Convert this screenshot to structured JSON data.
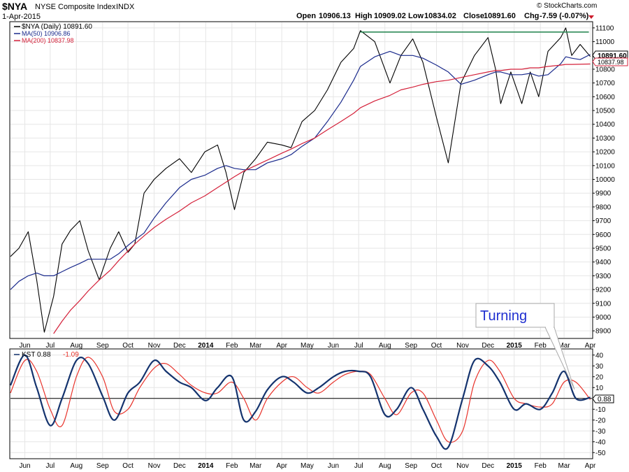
{
  "header": {
    "symbol": "$NYA",
    "name": "NYSE Composite Index",
    "exchange": "INDX",
    "date": "1-Apr-2015",
    "open_label": "Open",
    "open": "10906.13",
    "high_label": "High",
    "high": "10909.02",
    "low_label": "Low",
    "low": "10834.02",
    "close_label": "Close",
    "close": "10891.60",
    "chg_label": "Chg",
    "chg": "-7.59 (-0.07%)",
    "watermark": "© StockCharts.com"
  },
  "colors": {
    "price": "#000000",
    "ma50": "#1a2a8c",
    "ma200": "#d4213a",
    "resistance": "#2e8b57",
    "kst": "#14336e",
    "kst_signal": "#e8332b",
    "annotation": "#1f2fd0"
  },
  "chart_data": [
    {
      "type": "line",
      "panel": "price",
      "y_ticks": [
        "8900",
        "9000",
        "9100",
        "9200",
        "9300",
        "9400",
        "9500",
        "9600",
        "9700",
        "9800",
        "9900",
        "10000",
        "10100",
        "10200",
        "10300",
        "10400",
        "10500",
        "10600",
        "10700",
        "10800",
        "11000",
        "11100"
      ],
      "ylim": [
        8850,
        11140
      ],
      "x_labels": [
        "Jun",
        "Jul",
        "Aug",
        "Sep",
        "Oct",
        "Nov",
        "Dec",
        "2014",
        "Feb",
        "Mar",
        "Apr",
        "May",
        "Jun",
        "Jul",
        "Aug",
        "Sep",
        "Oct",
        "Nov",
        "Dec",
        "2015",
        "Feb",
        "Mar",
        "Apr"
      ],
      "bold_x_labels": [
        "2014",
        "2015"
      ],
      "legend": [
        {
          "label": "$NYA (Daily) 10891.60"
        },
        {
          "label": "MA(50) 10906.86"
        },
        {
          "label": "MA(200) 10837.98"
        }
      ],
      "last_value_tags": [
        "10891.60",
        "10837.98"
      ],
      "x": [
        "2013-05-15",
        "2013-05-25",
        "2013-06-05",
        "2013-06-15",
        "2013-06-24",
        "2013-07-05",
        "2013-07-15",
        "2013-07-25",
        "2013-08-05",
        "2013-08-15",
        "2013-08-28",
        "2013-09-10",
        "2013-09-20",
        "2013-10-01",
        "2013-10-09",
        "2013-10-20",
        "2013-11-01",
        "2013-11-15",
        "2013-12-01",
        "2013-12-15",
        "2013-12-31",
        "2014-01-15",
        "2014-01-25",
        "2014-02-04",
        "2014-02-15",
        "2014-03-01",
        "2014-03-15",
        "2014-04-01",
        "2014-04-12",
        "2014-04-25",
        "2014-05-10",
        "2014-05-25",
        "2014-06-10",
        "2014-06-25",
        "2014-07-03",
        "2014-07-20",
        "2014-08-07",
        "2014-08-20",
        "2014-09-03",
        "2014-09-15",
        "2014-10-01",
        "2014-10-15",
        "2014-10-30",
        "2014-11-15",
        "2014-12-01",
        "2014-12-10",
        "2014-12-16",
        "2014-12-28",
        "2015-01-10",
        "2015-01-20",
        "2015-01-30",
        "2015-02-10",
        "2015-02-25",
        "2015-03-03",
        "2015-03-10",
        "2015-03-20",
        "2015-04-01"
      ],
      "series": [
        {
          "name": "$NYA (Daily)",
          "values": [
            9440,
            9500,
            9620,
            9270,
            8890,
            9150,
            9530,
            9630,
            9700,
            9480,
            9270,
            9500,
            9620,
            9470,
            9530,
            9900,
            10000,
            10080,
            10150,
            10050,
            10200,
            10250,
            10050,
            9780,
            10050,
            10150,
            10270,
            10250,
            10230,
            10420,
            10500,
            10650,
            10850,
            10950,
            11080,
            11000,
            10700,
            10900,
            11020,
            10850,
            10450,
            10120,
            10700,
            10900,
            11030,
            10800,
            10550,
            10780,
            10550,
            10780,
            10600,
            10930,
            11030,
            11100,
            10900,
            10980,
            10892
          ]
        },
        {
          "name": "MA(50)",
          "values": [
            9200,
            9260,
            9300,
            9320,
            9300,
            9300,
            9330,
            9360,
            9390,
            9420,
            9420,
            9420,
            9460,
            9520,
            9560,
            9610,
            9720,
            9830,
            9940,
            10000,
            10030,
            10080,
            10100,
            10080,
            10070,
            10070,
            10120,
            10150,
            10180,
            10240,
            10300,
            10420,
            10560,
            10720,
            10820,
            10890,
            10930,
            10900,
            10900,
            10880,
            10830,
            10780,
            10690,
            10720,
            10760,
            10780,
            10780,
            10760,
            10760,
            10770,
            10750,
            10760,
            10840,
            10890,
            10880,
            10870,
            10907
          ]
        },
        {
          "name": "MA(200)",
          "values": [
            null,
            null,
            null,
            null,
            null,
            8880,
            8970,
            9050,
            9120,
            9190,
            9270,
            9340,
            9410,
            9480,
            9530,
            9590,
            9650,
            9710,
            9770,
            9830,
            9880,
            9940,
            9980,
            10020,
            10060,
            10100,
            10140,
            10190,
            10220,
            10260,
            10300,
            10360,
            10420,
            10480,
            10520,
            10570,
            10610,
            10650,
            10670,
            10690,
            10710,
            10720,
            10740,
            10760,
            10780,
            10790,
            10790,
            10800,
            10800,
            10810,
            10810,
            10820,
            10830,
            10835,
            10835,
            10836,
            10838
          ]
        }
      ],
      "resistance": {
        "value": 11070,
        "from": "2014-07-03",
        "to": "2015-04-01"
      }
    },
    {
      "type": "line",
      "panel": "indicator",
      "legend": [
        {
          "label": "KST 0.88"
        },
        {
          "label": "-1.09"
        }
      ],
      "y_ticks": [
        "-50",
        "-40",
        "-30",
        "-20",
        "-10",
        "0",
        "10",
        "20",
        "30",
        "40"
      ],
      "ylim": [
        -55,
        45
      ],
      "last_value_tag": "0.88",
      "x": [
        "2013-05-15",
        "2013-06-01",
        "2013-06-15",
        "2013-07-01",
        "2013-07-15",
        "2013-08-01",
        "2013-08-15",
        "2013-09-01",
        "2013-09-15",
        "2013-10-01",
        "2013-10-15",
        "2013-11-01",
        "2013-11-15",
        "2013-12-01",
        "2013-12-15",
        "2014-01-01",
        "2014-01-15",
        "2014-02-01",
        "2014-02-15",
        "2014-03-01",
        "2014-03-15",
        "2014-04-01",
        "2014-04-15",
        "2014-05-01",
        "2014-05-15",
        "2014-06-01",
        "2014-06-15",
        "2014-07-01",
        "2014-07-15",
        "2014-08-01",
        "2014-08-15",
        "2014-09-01",
        "2014-09-15",
        "2014-10-01",
        "2014-10-15",
        "2014-11-01",
        "2014-11-15",
        "2014-12-01",
        "2014-12-15",
        "2015-01-01",
        "2015-01-15",
        "2015-02-01",
        "2015-02-15",
        "2015-03-01",
        "2015-03-15",
        "2015-04-01"
      ],
      "series": [
        {
          "name": "KST",
          "values": [
            12,
            40,
            10,
            -25,
            0,
            35,
            32,
            2,
            -20,
            5,
            15,
            35,
            25,
            15,
            10,
            -2,
            10,
            20,
            -20,
            -12,
            8,
            20,
            15,
            5,
            10,
            20,
            25,
            25,
            20,
            -15,
            -10,
            10,
            -10,
            -35,
            -45,
            0,
            35,
            30,
            15,
            -10,
            -5,
            -10,
            5,
            25,
            0,
            0.88
          ]
        },
        {
          "name": "Signal",
          "values": [
            5,
            35,
            25,
            -10,
            -25,
            20,
            38,
            20,
            -12,
            -10,
            10,
            28,
            32,
            22,
            12,
            5,
            5,
            15,
            0,
            -20,
            0,
            15,
            20,
            10,
            5,
            15,
            22,
            25,
            22,
            0,
            -15,
            5,
            5,
            -20,
            -40,
            -30,
            15,
            35,
            25,
            0,
            -5,
            -8,
            -5,
            15,
            15,
            -1.09
          ]
        }
      ],
      "x_labels": [
        "Jun",
        "Jul",
        "Aug",
        "Sep",
        "Oct",
        "Nov",
        "Dec",
        "2014",
        "Feb",
        "Mar",
        "Apr",
        "May",
        "Jun",
        "Jul",
        "Aug",
        "Sep",
        "Oct",
        "Nov",
        "Dec",
        "2015",
        "Feb",
        "Mar",
        "Apr"
      ],
      "annotation": {
        "text": "Turning"
      }
    }
  ]
}
